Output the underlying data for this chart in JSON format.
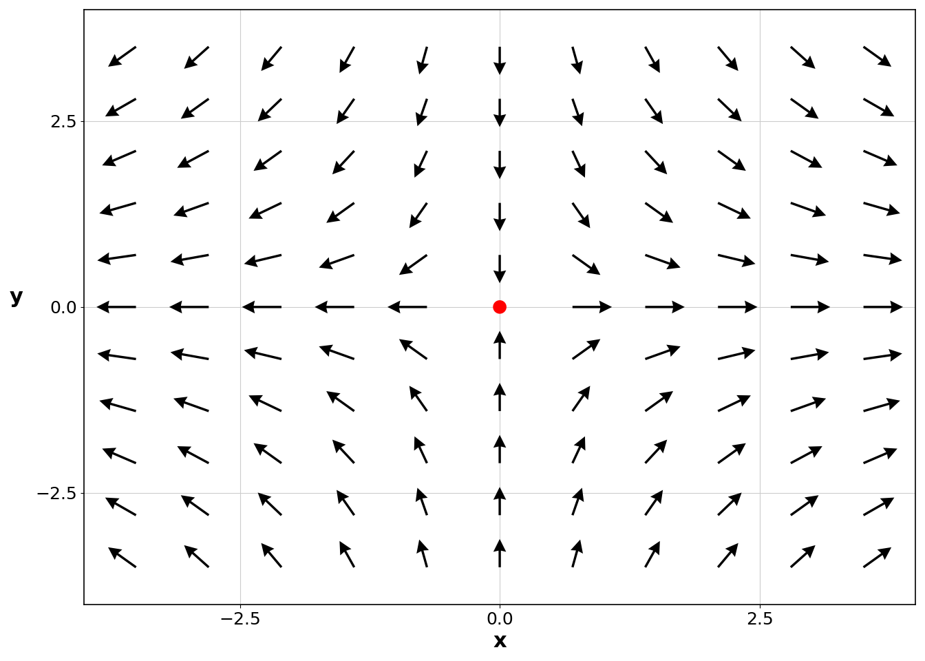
{
  "title": "",
  "xlabel": "x",
  "ylabel": "y",
  "xlim": [
    -4.0,
    4.0
  ],
  "ylim": [
    -4.0,
    4.0
  ],
  "x_ticks": [
    -2.5,
    0.0,
    2.5
  ],
  "y_ticks": [
    -2.5,
    0.0,
    2.5
  ],
  "equilibrium": [
    0,
    0
  ],
  "equilibrium_color": "red",
  "equilibrium_size": 200,
  "arrow_color": "black",
  "background_color": "white",
  "grid_color": "#cccccc",
  "grid_linewidth": 0.8,
  "n_grid": 11,
  "x_range": [
    -3.5,
    3.5
  ],
  "y_range": [
    -3.5,
    3.5
  ],
  "figsize": [
    13.44,
    9.6
  ],
  "dpi": 100,
  "arrow_scale": 0.38
}
